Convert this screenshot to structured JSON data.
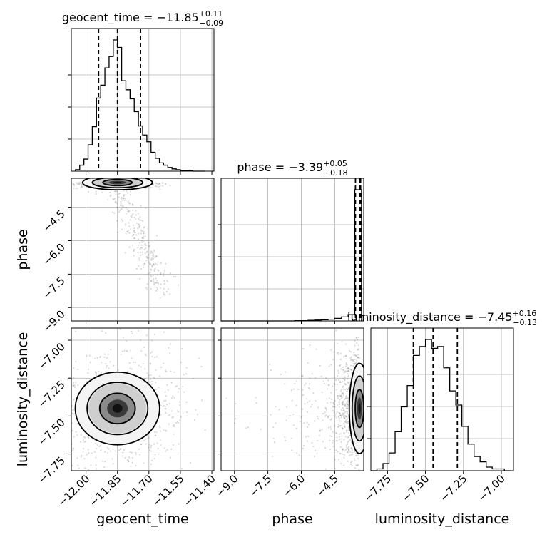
{
  "chart_data": {
    "type": "corner",
    "parameters": [
      {
        "key": "geocent_time",
        "label": "geocent_time",
        "median": -11.85,
        "plus": "0.11",
        "minus": "0.09",
        "title_main": "geocent_time = −11.85",
        "title_plus": "+0.11",
        "title_minus": "−0.09",
        "range": [
          -12.07,
          -11.39
        ],
        "ticks": [
          -12.0,
          -11.85,
          -11.7,
          -11.55,
          -11.4
        ],
        "tick_labels": [
          "−12.00",
          "−11.85",
          "−11.70",
          "−11.55",
          "−11.40"
        ],
        "quantiles": [
          -11.94,
          -11.85,
          -11.74
        ]
      },
      {
        "key": "phase",
        "label": "phase",
        "median": -3.39,
        "plus": "0.05",
        "minus": "0.18",
        "title_main": "phase = −3.39",
        "title_plus": "+0.05",
        "title_minus": "−0.18",
        "range": [
          -9.6,
          -3.2
        ],
        "ticks": [
          -9.0,
          -7.5,
          -6.0,
          -4.5
        ],
        "tick_labels": [
          "−9.0",
          "−7.5",
          "−6.0",
          "−4.5"
        ],
        "quantiles": [
          -3.57,
          -3.39,
          -3.34
        ]
      },
      {
        "key": "luminosity_distance",
        "label": "luminosity_distance",
        "median": -7.45,
        "plus": "0.16",
        "minus": "0.13",
        "title_main": "luminosity_distance = −7.45",
        "title_plus": "+0.16",
        "title_minus": "−0.13",
        "range": [
          -7.86,
          -6.92
        ],
        "ticks": [
          -7.75,
          -7.5,
          -7.25,
          -7.0
        ],
        "tick_labels": [
          "−7.75",
          "−7.50",
          "−7.25",
          "−7.00"
        ],
        "quantiles": [
          -7.58,
          -7.45,
          -7.29
        ]
      }
    ],
    "histograms": {
      "geocent_time": {
        "bins": [
          -12.05,
          -12.03,
          -12.01,
          -11.99,
          -11.97,
          -11.95,
          -11.93,
          -11.91,
          -11.89,
          -11.87,
          -11.85,
          -11.83,
          -11.81,
          -11.79,
          -11.77,
          -11.75,
          -11.73,
          -11.71,
          -11.69,
          -11.67,
          -11.65,
          -11.63,
          -11.61,
          -11.59,
          -11.57,
          -11.55,
          -11.53,
          -11.51,
          -11.49,
          -11.47,
          -11.45,
          -11.43
        ],
        "counts": [
          2,
          8,
          16,
          35,
          59,
          97,
          114,
          137,
          152,
          174,
          164,
          120,
          108,
          96,
          79,
          60,
          48,
          39,
          25,
          17,
          11,
          8,
          5,
          3,
          2,
          1,
          1,
          1,
          0,
          0,
          0
        ]
      },
      "phase": {
        "bins": [
          -9.6,
          -9.3,
          -9.0,
          -8.7,
          -8.4,
          -8.1,
          -7.8,
          -7.5,
          -7.2,
          -6.9,
          -6.6,
          -6.3,
          -6.0,
          -5.7,
          -5.4,
          -5.1,
          -4.8,
          -4.5,
          -4.2,
          -3.9,
          -3.6,
          -3.3
        ],
        "counts": [
          0,
          0,
          0,
          0,
          0,
          0,
          0,
          0,
          0,
          0,
          0,
          1,
          1,
          2,
          3,
          4,
          6,
          9,
          14,
          22,
          460
        ]
      },
      "luminosity_distance": {
        "bins": [
          -7.86,
          -7.82,
          -7.78,
          -7.74,
          -7.7,
          -7.66,
          -7.62,
          -7.58,
          -7.54,
          -7.5,
          -7.46,
          -7.42,
          -7.38,
          -7.34,
          -7.3,
          -7.26,
          -7.22,
          -7.18,
          -7.14,
          -7.1,
          -7.06,
          -7.02,
          -6.98,
          -6.94
        ],
        "counts": [
          0,
          1,
          4,
          10,
          22,
          36,
          48,
          65,
          70,
          74,
          69,
          70,
          58,
          45,
          37,
          25,
          15,
          8,
          5,
          2,
          1,
          1,
          0
        ]
      }
    },
    "grid": true
  }
}
